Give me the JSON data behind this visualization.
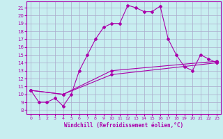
{
  "xlabel": "Windchill (Refroidissement éolien,°C)",
  "bg_color": "#c8eef0",
  "line_color": "#aa00aa",
  "grid_color": "#aaaacc",
  "x_ticks": [
    0,
    1,
    2,
    3,
    4,
    5,
    6,
    7,
    8,
    9,
    10,
    11,
    12,
    13,
    14,
    15,
    16,
    17,
    18,
    19,
    20,
    21,
    22,
    23
  ],
  "y_ticks": [
    8,
    9,
    10,
    11,
    12,
    13,
    14,
    15,
    16,
    17,
    18,
    19,
    20,
    21
  ],
  "ylim": [
    7.5,
    21.8
  ],
  "xlim": [
    -0.5,
    23.5
  ],
  "line1_x": [
    0,
    1,
    2,
    3,
    4,
    5,
    6,
    7,
    8,
    9,
    10,
    11,
    12,
    13,
    14,
    15,
    16,
    17,
    18,
    19,
    20,
    21,
    22,
    23
  ],
  "line1_y": [
    10.5,
    9.0,
    9.0,
    9.5,
    8.5,
    10.0,
    13.0,
    15.0,
    17.0,
    18.5,
    19.0,
    19.0,
    21.3,
    21.0,
    20.5,
    20.5,
    21.2,
    17.0,
    15.0,
    13.5,
    13.0,
    15.0,
    14.5,
    14.0
  ],
  "line2_x": [
    0,
    4,
    10,
    23
  ],
  "line2_y": [
    10.5,
    10.0,
    12.5,
    14.0
  ],
  "line3_x": [
    0,
    4,
    10,
    23
  ],
  "line3_y": [
    10.5,
    10.0,
    13.0,
    14.2
  ]
}
